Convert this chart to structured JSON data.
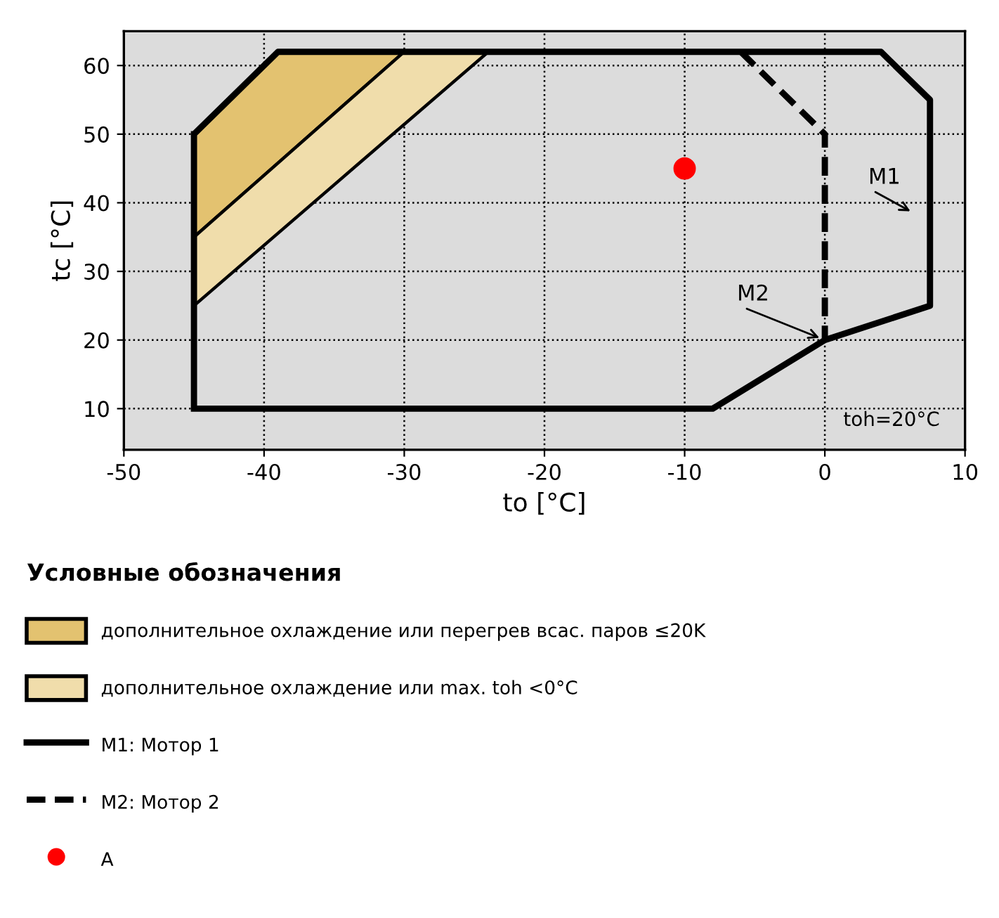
{
  "chart_data": {
    "type": "line",
    "xlabel": "to [°C]",
    "ylabel": "tc [°C]",
    "legend_title": "Условные обозначения",
    "legend": "bottom",
    "grid": true,
    "xlim": [
      -50,
      10
    ],
    "ylim": [
      4,
      65
    ],
    "xticks": [
      -50,
      -40,
      -30,
      -20,
      -10,
      0,
      10
    ],
    "yticks": [
      10,
      20,
      30,
      40,
      50,
      60
    ],
    "series": [
      {
        "type": "area",
        "name": "дополнительное охлаждение или перегрев всас. паров ≤20K",
        "color": "#e3c270",
        "x": [
          -45,
          -39,
          -30,
          -45,
          -45
        ],
        "values": [
          50,
          62,
          62,
          35,
          50
        ]
      },
      {
        "type": "area",
        "name": "дополнительное охлаждение или max. toh <0°C",
        "color": "#f0ddab",
        "x": [
          -45,
          -30,
          -24,
          -45,
          -45
        ],
        "values": [
          35,
          62,
          62,
          25,
          35
        ]
      },
      {
        "name": "M1: Мотор 1",
        "color": "#000000",
        "line_style": "solid",
        "x": [
          -45,
          -45,
          -39,
          4,
          7.5,
          7.5,
          0,
          -8,
          -45,
          -45
        ],
        "values": [
          10,
          50,
          62,
          62,
          55,
          25,
          20,
          10,
          10,
          50
        ]
      },
      {
        "name": "M2: Мотор 2",
        "color": "#000000",
        "line_style": "dashed",
        "x": [
          -6,
          0,
          0
        ],
        "values": [
          62,
          50,
          20
        ]
      },
      {
        "type": "scatter",
        "name": "A",
        "color": "#ff0000",
        "marker": "circle",
        "x": [
          -10
        ],
        "values": [
          45
        ]
      }
    ],
    "annotations": [
      "M1",
      {
        "text": "M2",
        "x": 0,
        "y": 20
      },
      "toh=20°C"
    ]
  }
}
